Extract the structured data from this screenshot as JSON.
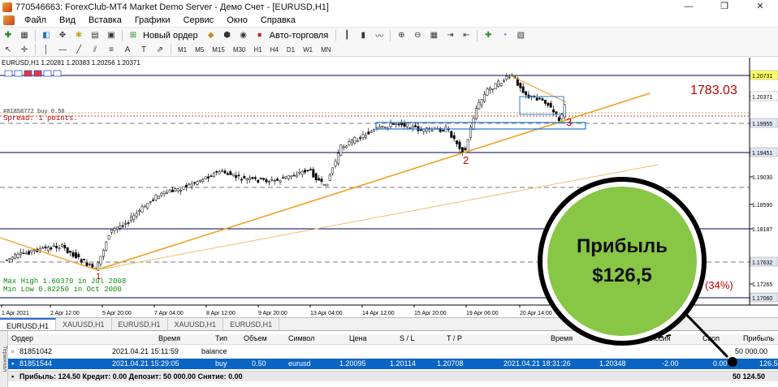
{
  "window": {
    "title": "770546663: ForexClub-MT4 Market Demo Server - Демо Счет - [EURUSD,H1]",
    "controls": [
      "—",
      "❐",
      "✕"
    ]
  },
  "menu": [
    "Файл",
    "Вид",
    "Вставка",
    "Графики",
    "Сервис",
    "Окно",
    "Справка"
  ],
  "toolbar": {
    "new_order": "Новый ордер",
    "auto_trading": "Авто-торговля",
    "notification_count": "1"
  },
  "timeframes": [
    "M1",
    "M5",
    "M15",
    "M30",
    "H1",
    "H4",
    "D1",
    "W1",
    "MN"
  ],
  "chart": {
    "symbol_line": "EURUSD,H1  1.20281 1.20383 1.20256 1.20371",
    "order_label": "#81858772 buy 0.50",
    "spread": "Spread: 1 points.",
    "max_label": "Max High 1.60370 in Jul 2008",
    "min_label": "Min Low  0.82250 in Oct 2000",
    "profit_big": "1783.03",
    "pct_label": "23 (34%)",
    "wave_labels": [
      "1",
      "2",
      "3"
    ],
    "price_scale": [
      "1.20731",
      "1.20371",
      "1.19955",
      "1.19451",
      "1.19030",
      "1.18590",
      "1.18187",
      "1.17632",
      "1.17265",
      "1.17060"
    ],
    "time_axis": [
      "1 Apr 2021",
      "2 Apr 12:00",
      "5 Apr 20:00",
      "7 Apr 04:00",
      "8 Apr 12:00",
      "9 Apr 20:00",
      "13 Apr 04:00",
      "14 Apr 12:00",
      "15 Apr 20:00",
      "19 Apr 06:00",
      "20 Apr 14:00"
    ],
    "colors": {
      "up": "#000000",
      "down": "#000000",
      "trend": "#f0a020",
      "level": "#00005a",
      "box": "#2f7fd0",
      "text_red": "#c00000"
    }
  },
  "tabs": [
    "EURUSD,H1",
    "XAUUSD,H1",
    "EURUSD,H1",
    "XAUUSD,H1",
    "EURUSD,H1"
  ],
  "terminal": {
    "side_label": "Терминал",
    "headers": {
      "order": "Ордер",
      "time": "Время",
      "type": "Тип",
      "volume": "Объем",
      "symbol": "Символ",
      "price": "Цена",
      "sl": "S / L",
      "tp": "T / P",
      "time2": "Время",
      "price2": "Цена",
      "commission": "Комиссия",
      "swap": "Своп",
      "profit": "Прибыль"
    },
    "rows": [
      {
        "order": "81851042",
        "time": "2021.04.21 15:11:59",
        "type": "balance",
        "profit": "50 000.00"
      },
      {
        "order": "81851544",
        "time": "2021.04.21 15:29:05",
        "type": "buy",
        "volume": "0.50",
        "symbol": "eurusd",
        "price": "1.20095",
        "sl": "1.20114",
        "tp": "1.20708",
        "time2": "2021.04.21 18:31:26",
        "price2": "1.20348",
        "commission": "-2.00",
        "swap": "0.00",
        "profit": "126.50"
      }
    ],
    "footer": {
      "text": "Прибыль: 124.50  Кредит: 0.00  Депозит: 50 000.00  Снятие: 0.00",
      "total": "50 124.50"
    }
  },
  "callout": {
    "line1": "Прибыль",
    "line2": "$126,5"
  }
}
